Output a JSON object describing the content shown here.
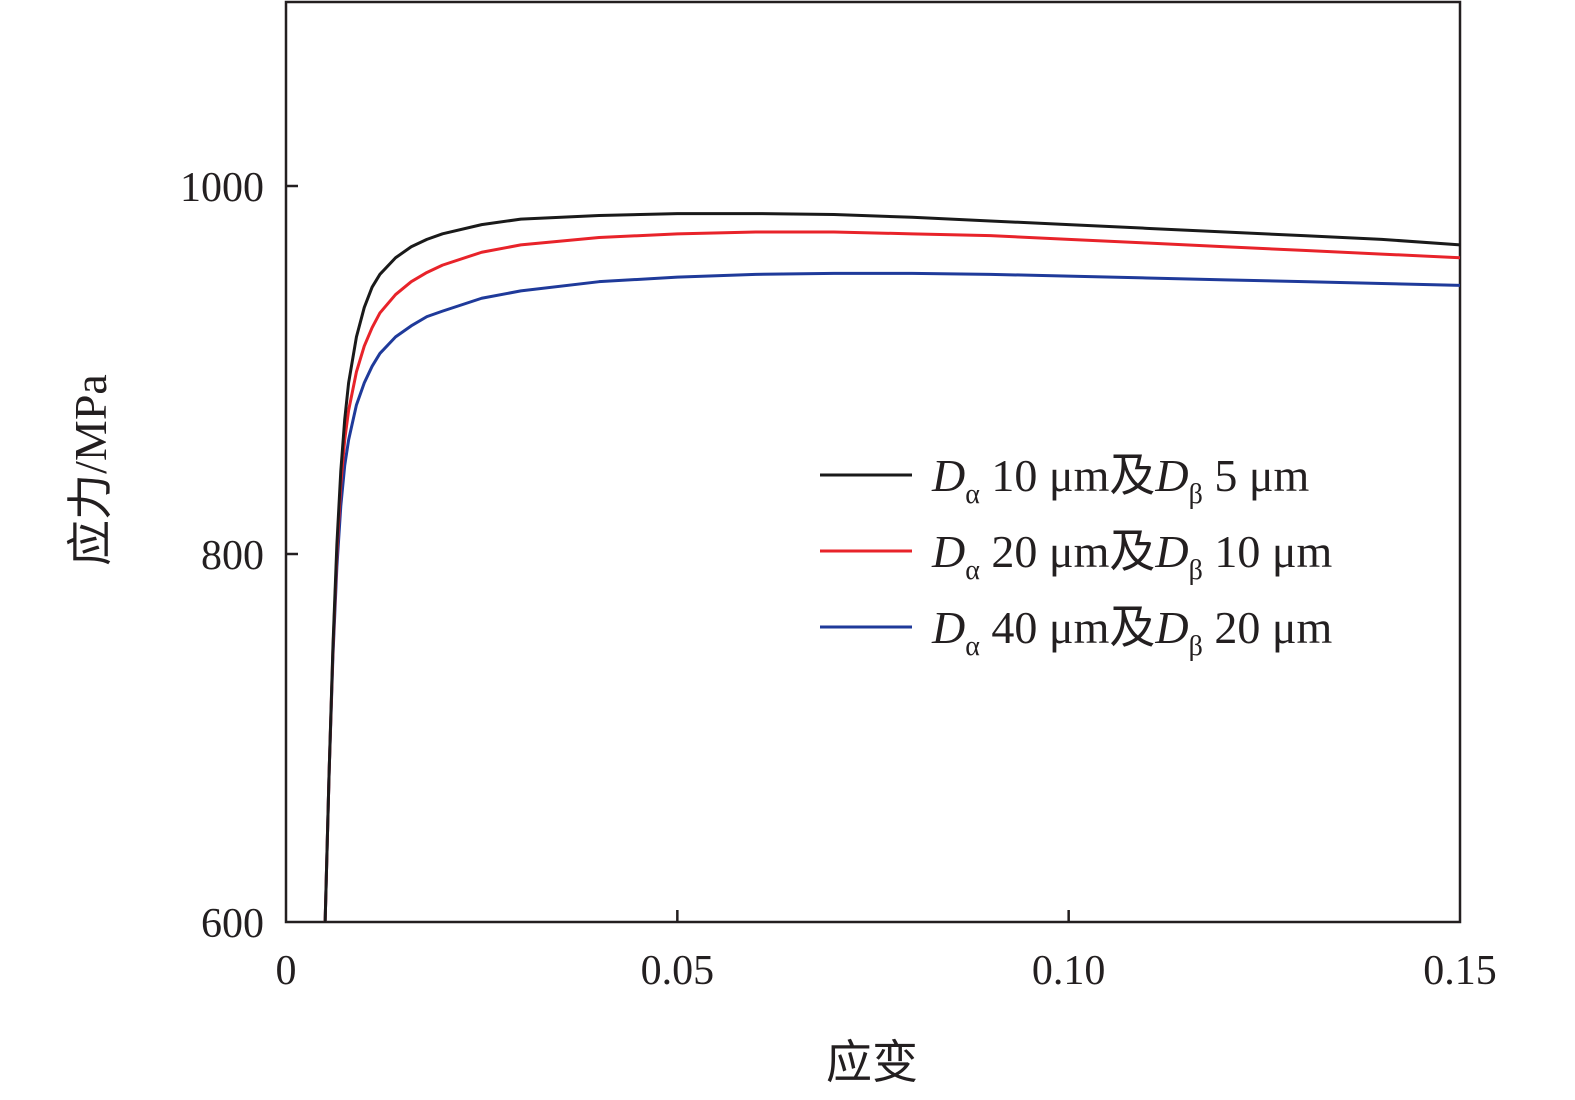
{
  "chart_data": {
    "type": "line",
    "xlabel": "应变",
    "ylabel": "应力/MPa",
    "xlim": [
      0,
      0.15
    ],
    "ylim": [
      600,
      1100
    ],
    "xticks": [
      0,
      0.05,
      0.1,
      0.15
    ],
    "xtick_labels": [
      "0",
      "0.05",
      "0.10",
      "0.15"
    ],
    "yticks": [
      600,
      800,
      1000
    ],
    "ytick_labels": [
      "600",
      "800",
      "1000"
    ],
    "grid": false,
    "legend_position": "right",
    "series": [
      {
        "name": "Dα 10 μm及Dβ 5 μm",
        "legend": {
          "main": "D",
          "sub1": "α",
          "mid": " 10 μm及",
          "main2": "D",
          "sub2": "β",
          "tail": " 5 μm"
        },
        "color": "#1a1a1a",
        "x": [
          0.005,
          0.0055,
          0.006,
          0.0065,
          0.007,
          0.0075,
          0.008,
          0.009,
          0.01,
          0.011,
          0.012,
          0.014,
          0.016,
          0.018,
          0.02,
          0.025,
          0.03,
          0.04,
          0.05,
          0.06,
          0.07,
          0.08,
          0.09,
          0.1,
          0.11,
          0.12,
          0.13,
          0.14,
          0.15
        ],
        "y": [
          600,
          680,
          750,
          805,
          845,
          873,
          893,
          918,
          934,
          945,
          952,
          961,
          967,
          971,
          974,
          979,
          982,
          984,
          985,
          985,
          984.5,
          983,
          981,
          979,
          977,
          975,
          973,
          971,
          968
        ]
      },
      {
        "name": "Dα 20 μm及Dβ 10 μm",
        "legend": {
          "main": "D",
          "sub1": "α",
          "mid": " 20 μm及",
          "main2": "D",
          "sub2": "β",
          "tail": " 10 μm"
        },
        "color": "#e8232a",
        "x": [
          0.005,
          0.0055,
          0.006,
          0.0065,
          0.007,
          0.0075,
          0.008,
          0.009,
          0.01,
          0.011,
          0.012,
          0.014,
          0.016,
          0.018,
          0.02,
          0.025,
          0.03,
          0.04,
          0.05,
          0.06,
          0.07,
          0.08,
          0.09,
          0.1,
          0.11,
          0.12,
          0.13,
          0.14,
          0.15
        ],
        "y": [
          600,
          680,
          748,
          800,
          838,
          862,
          878,
          899,
          913,
          923,
          931,
          941,
          948,
          953,
          957,
          964,
          968,
          972,
          974,
          975,
          975,
          974,
          973,
          971,
          969,
          967,
          965,
          963,
          961
        ]
      },
      {
        "name": "Dα 40 μm及Dβ 20 μm",
        "legend": {
          "main": "D",
          "sub1": "α",
          "mid": " 40 μm及",
          "main2": "D",
          "sub2": "β",
          "tail": " 20 μm"
        },
        "color": "#1f3a9a",
        "x": [
          0.005,
          0.0055,
          0.006,
          0.0065,
          0.007,
          0.0075,
          0.008,
          0.009,
          0.01,
          0.011,
          0.012,
          0.014,
          0.016,
          0.018,
          0.02,
          0.025,
          0.03,
          0.04,
          0.05,
          0.06,
          0.07,
          0.08,
          0.09,
          0.1,
          0.11,
          0.12,
          0.13,
          0.14,
          0.15
        ],
        "y": [
          600,
          680,
          745,
          793,
          826,
          848,
          862,
          881,
          893,
          902,
          909,
          918,
          924,
          929,
          932,
          939,
          943,
          948,
          950.5,
          952,
          952.5,
          952.5,
          952,
          951,
          950,
          949,
          948,
          947,
          946
        ]
      }
    ]
  }
}
